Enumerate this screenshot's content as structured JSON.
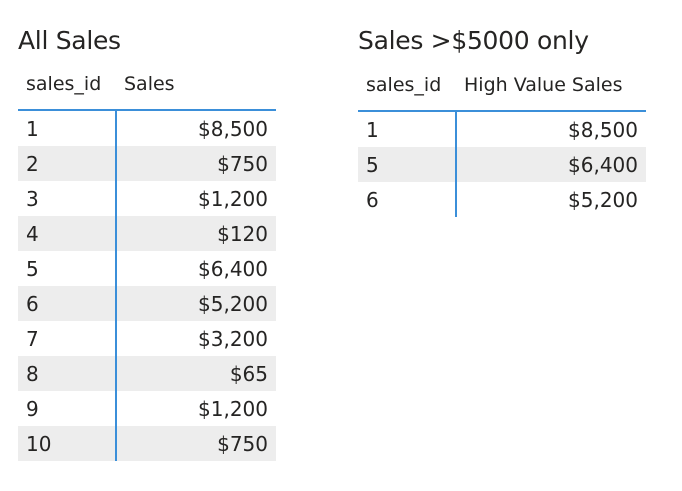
{
  "visuals": [
    {
      "title": "All Sales",
      "columns": [
        "sales_id",
        "Sales"
      ],
      "rows": [
        [
          "1",
          "$8,500"
        ],
        [
          "2",
          "$750"
        ],
        [
          "3",
          "$1,200"
        ],
        [
          "4",
          "$120"
        ],
        [
          "5",
          "$6,400"
        ],
        [
          "6",
          "$5,200"
        ],
        [
          "7",
          "$3,200"
        ],
        [
          "8",
          "$65"
        ],
        [
          "9",
          "$1,200"
        ],
        [
          "10",
          "$750"
        ]
      ]
    },
    {
      "title": "Sales >$5000 only",
      "columns": [
        "sales_id",
        "High Value Sales"
      ],
      "rows": [
        [
          "1",
          "$8,500"
        ],
        [
          "5",
          "$6,400"
        ],
        [
          "6",
          "$5,200"
        ]
      ]
    }
  ],
  "colors": {
    "accent": "#3b8fd9",
    "band": "#ededed",
    "text": "#252423"
  }
}
